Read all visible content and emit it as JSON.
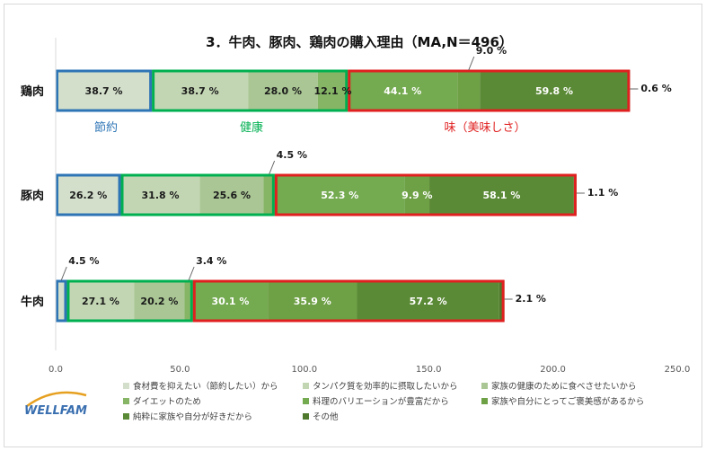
{
  "chart_data": {
    "type": "bar",
    "orientation": "horizontal",
    "stacked": true,
    "title": "3．牛肉、豚肉、鶏肉の購入理由（MA,N＝496）",
    "categories": [
      "鶏肉",
      "豚肉",
      "牛肉"
    ],
    "xlim": [
      0,
      250
    ],
    "x_ticks": [
      "0.0",
      "50.0",
      "100.0",
      "150.0",
      "200.0",
      "250.0"
    ],
    "grid": false,
    "legend_position": "bottom",
    "value_suffix": " %",
    "series": [
      {
        "name": "食材費を抑えたい（節約したい）から",
        "color": "#d3dfcb",
        "values": [
          38.7,
          26.2,
          4.5
        ]
      },
      {
        "name": "タンパク質を効率的に摂取したいから",
        "color": "#c3d6b4",
        "values": [
          38.7,
          31.8,
          27.1
        ]
      },
      {
        "name": "家族の健康のために食べさせたいから",
        "color": "#a9c694",
        "values": [
          28.0,
          25.6,
          20.2
        ]
      },
      {
        "name": "ダイエットのため",
        "color": "#86b566",
        "values": [
          12.1,
          4.5,
          3.4
        ]
      },
      {
        "name": "料理のバリエーションが豊富だから",
        "color": "#74aa50",
        "values": [
          44.1,
          52.3,
          30.1
        ]
      },
      {
        "name": "家族や自分にとってご褒美感があるから",
        "color": "#6ea045",
        "values": [
          9.0,
          9.9,
          35.9
        ]
      },
      {
        "name": "純粋に家族や自分が好きだから",
        "color": "#5b8a36",
        "values": [
          59.8,
          58.1,
          57.2
        ]
      },
      {
        "name": "その他",
        "color": "#4f7a2d",
        "values": [
          0.6,
          1.1,
          2.1
        ]
      }
    ],
    "annotations": {
      "group_labels": [
        {
          "text": "節約",
          "color": "#2e75b6"
        },
        {
          "text": "健康",
          "color": "#00b050"
        },
        {
          "text": "味（美味しさ）",
          "color": "#e02020"
        }
      ]
    }
  },
  "logo": {
    "text": "WELLFAM"
  }
}
